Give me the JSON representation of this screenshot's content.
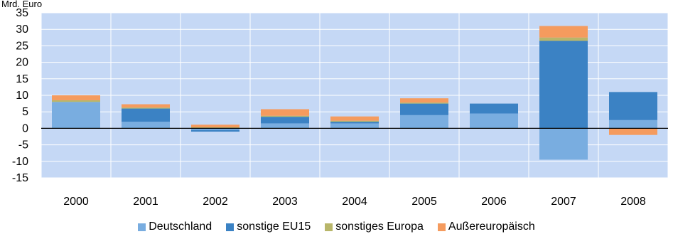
{
  "top_left_label": "Mrd. Euro",
  "chart_data": {
    "type": "bar",
    "stacked": true,
    "categories": [
      "2000",
      "2001",
      "2002",
      "2003",
      "2004",
      "2005",
      "2006",
      "2007",
      "2008"
    ],
    "y_ticks": [
      "35",
      "30",
      "25",
      "20",
      "15",
      "10",
      "5",
      "0",
      "-5",
      "-10",
      "-15"
    ],
    "ylim": [
      -15,
      35
    ],
    "grid": true,
    "legend_position": "bottom",
    "plot_background": "#c5d8f5",
    "series": [
      {
        "name": "Deutschland",
        "color": "#79ade0",
        "values": [
          8,
          2,
          -0.5,
          1.5,
          1.5,
          4,
          4.5,
          -9.5,
          2.5
        ]
      },
      {
        "name": "sonstige EU15",
        "color": "#3b82c4",
        "values": [
          0,
          4,
          -0.5,
          2,
          0.5,
          3.5,
          3,
          26.5,
          8.5
        ]
      },
      {
        "name": "sonstiges Europa",
        "color": "#b8b66a",
        "values": [
          0.5,
          0.3,
          0.3,
          0.3,
          0.3,
          0.3,
          0,
          1,
          0
        ]
      },
      {
        "name": "Außereuropäisch",
        "color": "#f59b5e",
        "values": [
          1.5,
          1,
          0.8,
          2,
          1.3,
          1.3,
          0,
          3.5,
          -2
        ]
      }
    ]
  }
}
